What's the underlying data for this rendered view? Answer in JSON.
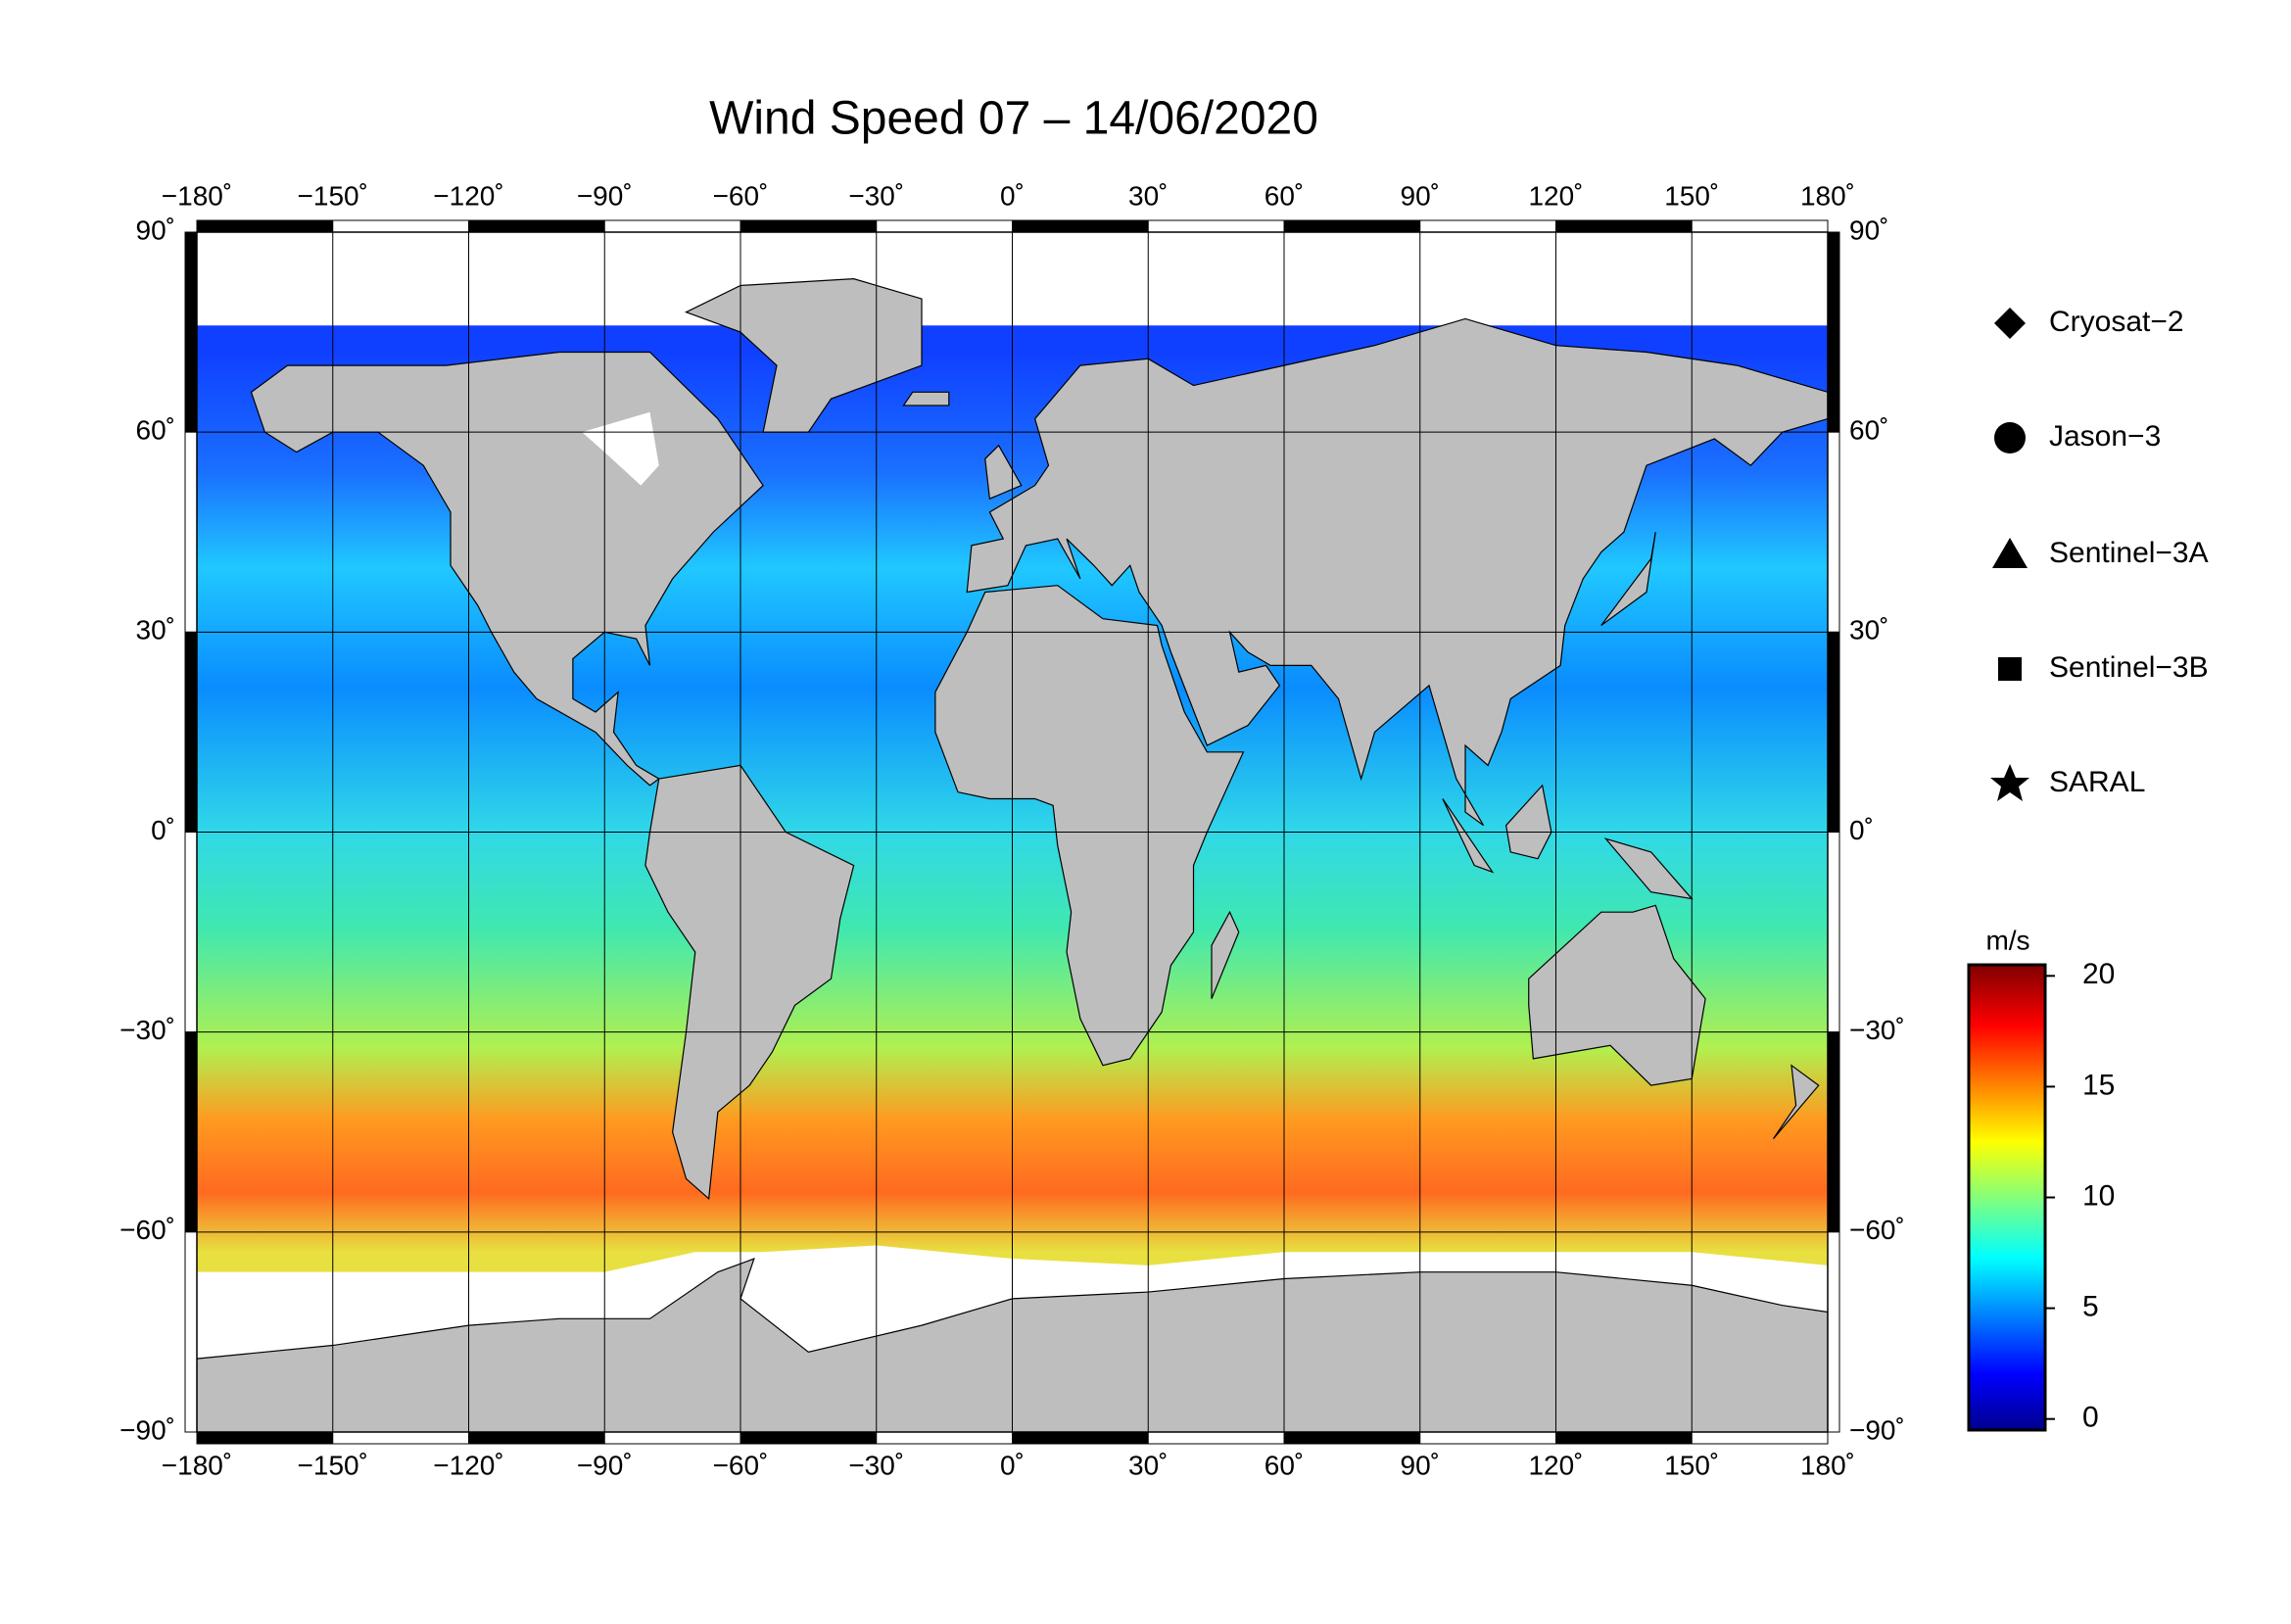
{
  "title": "Wind Speed 07 – 14/06/2020",
  "map": {
    "xlim": [
      -180,
      180
    ],
    "ylim": [
      -90,
      90
    ],
    "xticks": [
      {
        "value": -180,
        "label": "−180˚"
      },
      {
        "value": -150,
        "label": "−150˚"
      },
      {
        "value": -120,
        "label": "−120˚"
      },
      {
        "value": -90,
        "label": "−90˚"
      },
      {
        "value": -60,
        "label": "−60˚"
      },
      {
        "value": -30,
        "label": "−30˚"
      },
      {
        "value": 0,
        "label": "0˚"
      },
      {
        "value": 30,
        "label": "30˚"
      },
      {
        "value": 60,
        "label": "60˚"
      },
      {
        "value": 90,
        "label": "90˚"
      },
      {
        "value": 120,
        "label": "120˚"
      },
      {
        "value": 150,
        "label": "150˚"
      },
      {
        "value": 180,
        "label": "180˚"
      }
    ],
    "yticks": [
      {
        "value": 90,
        "label": "90˚"
      },
      {
        "value": 60,
        "label": "60˚"
      },
      {
        "value": 30,
        "label": "30˚"
      },
      {
        "value": 0,
        "label": "0˚"
      },
      {
        "value": -30,
        "label": "−30˚"
      },
      {
        "value": -60,
        "label": "−60˚"
      },
      {
        "value": -90,
        "label": "−90˚"
      }
    ]
  },
  "legend": {
    "items": [
      "Cryosat−2",
      "Jason−3",
      "Sentinel−3A",
      "Sentinel−3B",
      "SARAL"
    ]
  },
  "colorbar": {
    "label": "m/s",
    "lim": [
      -0.5,
      20.5
    ],
    "ticks": [
      0,
      5,
      10,
      15,
      20
    ]
  }
}
